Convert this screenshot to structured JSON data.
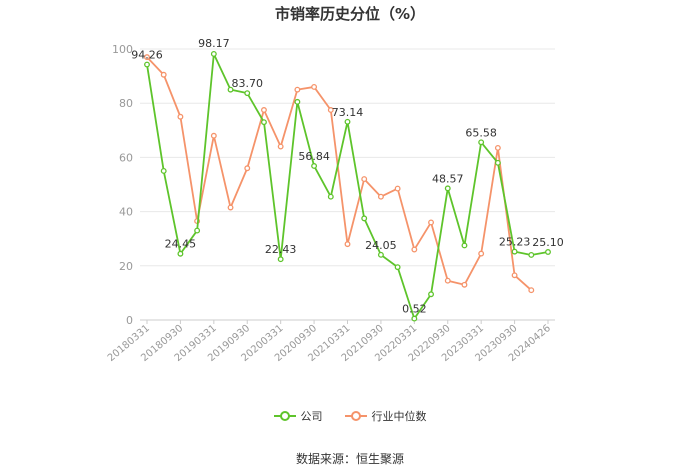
{
  "title": "市销率历史分位（%）",
  "source": "数据来源：恒生聚源",
  "colors": {
    "company": "#5ec42b",
    "industry": "#f5936a",
    "grid": "#e8e8e8",
    "axis": "#cccccc",
    "tick_text": "#999999",
    "label_text": "#333333"
  },
  "chart_data": {
    "type": "line",
    "title": "市销率历史分位（%）",
    "xlabel": "",
    "ylabel": "",
    "ylim": [
      0,
      100
    ],
    "yticks": [
      0,
      20,
      40,
      60,
      80,
      100
    ],
    "grid": true,
    "legend_position": "bottom",
    "x": [
      "20180331",
      "20180630",
      "20180930",
      "20181231",
      "20190331",
      "20190630",
      "20190930",
      "20191231",
      "20200331",
      "20200630",
      "20200930",
      "20201231",
      "20210331",
      "20210630",
      "20210930",
      "20211231",
      "20220331",
      "20220630",
      "20220930",
      "20221231",
      "20230331",
      "20230630",
      "20230930",
      "20231231",
      "20240426"
    ],
    "xtick_labels": [
      "20180331",
      "20180930",
      "20190331",
      "20190930",
      "20200331",
      "20200930",
      "20210331",
      "20210930",
      "20220331",
      "20220930",
      "20230331",
      "20230930",
      "20240426"
    ],
    "series": [
      {
        "name": "公司",
        "color": "#5ec42b",
        "values": [
          94.26,
          55,
          24.45,
          33,
          98.17,
          85,
          83.7,
          73,
          22.43,
          80.5,
          56.84,
          45.5,
          73.14,
          37.5,
          24.05,
          19.5,
          0.52,
          9.5,
          48.57,
          27.5,
          65.58,
          58,
          25.23,
          24,
          25.1
        ]
      },
      {
        "name": "行业中位数",
        "color": "#f5936a",
        "values": [
          97,
          90.5,
          75,
          36.5,
          68,
          41.5,
          56,
          77.5,
          64,
          85,
          86,
          77.5,
          28,
          52,
          45.5,
          48.5,
          26,
          36,
          14.5,
          13,
          24.5,
          63.5,
          16.5,
          11,
          null
        ]
      }
    ],
    "data_labels": [
      {
        "index": 0,
        "text": "94.26"
      },
      {
        "index": 2,
        "text": "24.45"
      },
      {
        "index": 4,
        "text": "98.17"
      },
      {
        "index": 6,
        "text": "83.70"
      },
      {
        "index": 8,
        "text": "22.43"
      },
      {
        "index": 10,
        "text": "56.84"
      },
      {
        "index": 12,
        "text": "73.14"
      },
      {
        "index": 14,
        "text": "24.05"
      },
      {
        "index": 16,
        "text": "0.52"
      },
      {
        "index": 18,
        "text": "48.57"
      },
      {
        "index": 20,
        "text": "65.58"
      },
      {
        "index": 22,
        "text": "25.23"
      },
      {
        "index": 24,
        "text": "25.10"
      }
    ]
  }
}
